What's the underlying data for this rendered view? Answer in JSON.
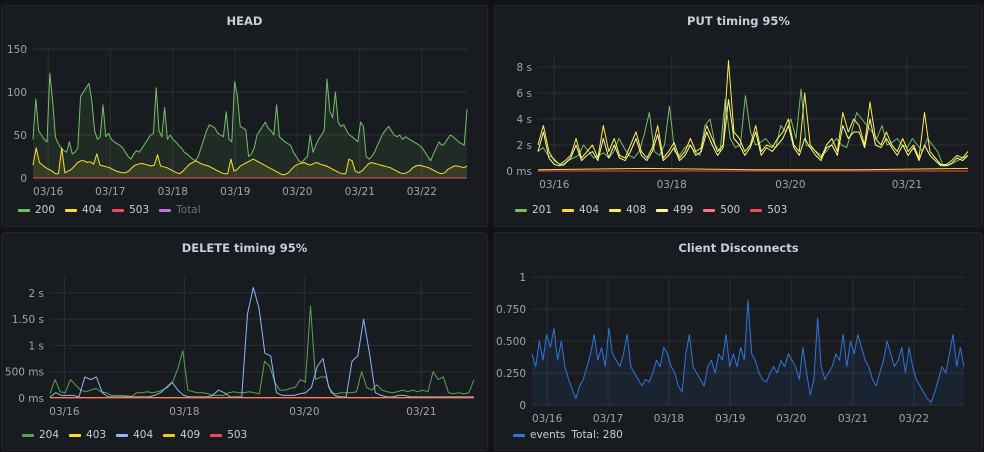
{
  "chart_data": [
    {
      "type": "area",
      "title": "HEAD",
      "xlabel": "",
      "ylabel": "",
      "ylim": [
        0,
        150
      ],
      "yticks": [
        "0",
        "50",
        "100",
        "150"
      ],
      "xticks": [
        "03/16",
        "03/17",
        "03/18",
        "03/19",
        "03/20",
        "03/21",
        "03/22"
      ],
      "grid": true,
      "legend_position": "bottom-left",
      "series": [
        {
          "name": "200",
          "color": "#73bf69",
          "values": [
            45,
            92,
            55,
            50,
            45,
            42,
            122,
            90,
            48,
            40,
            35,
            32,
            30,
            42,
            28,
            30,
            35,
            95,
            100,
            105,
            110,
            90,
            55,
            45,
            48,
            85,
            48,
            52,
            45,
            42,
            40,
            38,
            35,
            30,
            25,
            22,
            28,
            32,
            30,
            35,
            40,
            45,
            50,
            52,
            105,
            55,
            48,
            82,
            45,
            50,
            45,
            42,
            38,
            35,
            30,
            28,
            25,
            22,
            20,
            25,
            35,
            45,
            55,
            62,
            60,
            58,
            52,
            50,
            48,
            77,
            45,
            42,
            112,
            95,
            60,
            58,
            56,
            25,
            28,
            35,
            50,
            55,
            60,
            65,
            58,
            55,
            50,
            85,
            48,
            45,
            42,
            40,
            38,
            30,
            25,
            20,
            18,
            22,
            25,
            50,
            30,
            38,
            45,
            50,
            55,
            115,
            78,
            70,
            100,
            65,
            60,
            62,
            55,
            50,
            48,
            45,
            42,
            65,
            60,
            25,
            22,
            25,
            30,
            38,
            45,
            52,
            56,
            60,
            55,
            50,
            48,
            50,
            45,
            48,
            46,
            44,
            42,
            40,
            38,
            35,
            30,
            25,
            20,
            28,
            35,
            42,
            38,
            40,
            45,
            50,
            48,
            45,
            42,
            40,
            38,
            80
          ]
        },
        {
          "name": "404",
          "color": "#fade2a",
          "values": [
            15,
            35,
            18,
            15,
            12,
            10,
            8,
            5,
            5,
            35,
            6,
            8,
            10,
            14,
            18,
            20,
            20,
            18,
            19,
            16,
            28,
            15,
            14,
            13,
            12,
            10,
            8,
            7,
            6,
            6,
            8,
            12,
            15,
            16,
            17,
            16,
            15,
            14,
            15,
            27,
            14,
            13,
            12,
            10,
            8,
            6,
            5,
            8,
            12,
            16,
            18,
            20,
            18,
            16,
            15,
            14,
            12,
            10,
            8,
            6,
            5,
            5,
            22,
            8,
            10,
            14,
            16,
            18,
            20,
            22,
            20,
            18,
            16,
            14,
            12,
            10,
            8,
            6,
            4,
            4,
            6,
            10,
            14,
            16,
            17,
            18,
            16,
            15,
            17,
            18,
            16,
            15,
            14,
            12,
            10,
            8,
            6,
            5,
            5,
            22,
            20,
            8,
            6,
            8,
            12,
            16,
            18,
            17,
            16,
            15,
            14,
            13,
            12,
            10,
            8,
            6,
            5,
            6,
            8,
            12,
            14,
            15,
            14,
            13,
            12,
            10,
            8,
            6,
            5,
            6,
            10,
            12,
            14,
            14,
            13,
            12,
            14
          ]
        },
        {
          "name": "503",
          "color": "#f2495c",
          "values": [
            0,
            0
          ]
        },
        {
          "name": "Total",
          "color": "#b877d9",
          "hidden": true,
          "values": []
        }
      ]
    },
    {
      "type": "line",
      "title": "PUT timing 95%",
      "xlabel": "",
      "ylabel": "",
      "ylim": [
        0,
        9
      ],
      "yticks": [
        "0 ms",
        "2 s",
        "4 s",
        "6 s",
        "8 s"
      ],
      "xticks": [
        "03/16",
        "03/18",
        "03/20",
        "03/21"
      ],
      "grid": true,
      "legend_position": "bottom-left",
      "series": [
        {
          "name": "201",
          "color": "#73bf69",
          "values": [
            1.5,
            1.8,
            1.2,
            1.0,
            0.6,
            0.4,
            0.8,
            1.0,
            1.2,
            2.0,
            1.5,
            1.0,
            1.2,
            1.4,
            1.0,
            1.5,
            2.5,
            1.8,
            1.2,
            1.0,
            1.5,
            2.8,
            4.5,
            1.5,
            1.2,
            2.0,
            5.0,
            1.5,
            1.2,
            1.8,
            2.0,
            1.5,
            1.2,
            3.5,
            4.0,
            2.0,
            1.5,
            5.5,
            2.5,
            1.8,
            2.0,
            5.8,
            3.0,
            2.0,
            2.2,
            2.5,
            2.0,
            1.8,
            3.5,
            3.0,
            4.0,
            2.5,
            6.3,
            2.0,
            1.8,
            1.5,
            1.2,
            1.5,
            2.0,
            2.5,
            2.0,
            1.8,
            3.0,
            4.5,
            4.0,
            3.5,
            3.0,
            2.5,
            3.5,
            2.0,
            2.2,
            2.5,
            2.0,
            1.8,
            2.5,
            2.0,
            1.5,
            2.5,
            2.0,
            1.5,
            0.5,
            0.4,
            0.6,
            0.8,
            1.0,
            1.2
          ]
        },
        {
          "name": "404",
          "color": "#fade2a",
          "values": [
            0.1,
            0.2,
            0.1,
            0.1,
            0.2
          ]
        },
        {
          "name": "408",
          "color": "#ffee52",
          "values": [
            2.0,
            3.5,
            1.5,
            0.8,
            0.5,
            0.8,
            1.2,
            2.5,
            1.0,
            1.5,
            2.0,
            1.0,
            3.5,
            1.5,
            2.5,
            1.2,
            1.0,
            2.0,
            3.0,
            1.5,
            1.0,
            1.8,
            3.5,
            1.0,
            1.5,
            2.2,
            1.0,
            1.5,
            2.5,
            1.5,
            1.8,
            3.5,
            2.5,
            1.5,
            2.0,
            8.5,
            3.0,
            2.5,
            1.5,
            2.0,
            3.5,
            1.5,
            2.0,
            1.8,
            2.5,
            3.0,
            4.0,
            2.0,
            1.5,
            6.0,
            2.0,
            1.5,
            1.0,
            2.0,
            2.5,
            1.5,
            4.5,
            3.0,
            4.0,
            3.5,
            2.0,
            5.3,
            2.5,
            2.0,
            3.0,
            2.0,
            1.5,
            2.5,
            1.5,
            2.0,
            1.0,
            4.5,
            1.5,
            1.0,
            0.5,
            0.5,
            0.8,
            1.2,
            1.0,
            1.5
          ]
        },
        {
          "name": "499",
          "color": "#fff899",
          "values": [
            1.5,
            3.0,
            1.0,
            0.5,
            0.4,
            0.6,
            1.0,
            2.0,
            0.8,
            1.2,
            1.5,
            0.8,
            2.5,
            1.0,
            2.0,
            1.0,
            0.8,
            1.5,
            2.5,
            1.2,
            0.8,
            1.5,
            2.8,
            0.8,
            1.2,
            1.8,
            0.8,
            1.2,
            2.0,
            1.2,
            1.5,
            3.0,
            2.0,
            1.2,
            1.8,
            5.5,
            2.5,
            2.0,
            1.2,
            1.8,
            3.0,
            1.2,
            1.8,
            1.5,
            2.0,
            2.5,
            3.5,
            1.8,
            1.2,
            2.5,
            1.8,
            1.2,
            0.8,
            1.8,
            2.0,
            1.2,
            3.5,
            2.5,
            3.0,
            3.0,
            1.8,
            4.0,
            2.0,
            1.8,
            2.5,
            1.8,
            1.2,
            2.0,
            1.2,
            1.8,
            0.8,
            2.0,
            1.2,
            0.8,
            0.4,
            0.4,
            0.6,
            1.0,
            0.8,
            1.2
          ]
        },
        {
          "name": "500",
          "color": "#ff7383",
          "values": [
            0,
            0
          ]
        },
        {
          "name": "503",
          "color": "#f2495c",
          "values": [
            0,
            0
          ]
        }
      ]
    },
    {
      "type": "line",
      "title": "DELETE timing 95%",
      "xlabel": "",
      "ylabel": "",
      "ylim": [
        0,
        2.3
      ],
      "yticks": [
        "0 ms",
        "500 ms",
        "1 s",
        "1.50 s",
        "2 s"
      ],
      "xticks": [
        "03/16",
        "03/18",
        "03/20",
        "03/21"
      ],
      "grid": true,
      "legend_position": "bottom-left",
      "series": [
        {
          "name": "204",
          "color": "#56a64b",
          "values": [
            0.08,
            0.35,
            0.12,
            0.1,
            0.35,
            0.25,
            0.15,
            0.12,
            0.15,
            0.18,
            0.12,
            0.1,
            0.05,
            0.05,
            0.05,
            0.04,
            0.03,
            0.1,
            0.1,
            0.12,
            0.1,
            0.12,
            0.15,
            0.2,
            0.3,
            0.55,
            0.9,
            0.15,
            0.12,
            0.1,
            0.1,
            0.08,
            0.05,
            0.05,
            0.05,
            0.1,
            0.12,
            0.1,
            0.1,
            0.12,
            0.1,
            0.08,
            0.7,
            0.6,
            0.3,
            0.15,
            0.15,
            0.18,
            0.2,
            0.35,
            0.3,
            1.75,
            0.35,
            0.4,
            0.4,
            0.1,
            0.08,
            0.1,
            0.1,
            0.1,
            0.12,
            0.5,
            0.2,
            0.15,
            0.25,
            0.15,
            0.12,
            0.1,
            0.12,
            0.15,
            0.12,
            0.15,
            0.12,
            0.15,
            0.12,
            0.5,
            0.35,
            0.4,
            0.1,
            0.08,
            0.1,
            0.08,
            0.1,
            0.35
          ]
        },
        {
          "name": "403",
          "color": "#fade2a",
          "values": [
            0.01,
            0.01
          ]
        },
        {
          "name": "404",
          "color": "#8ab8ff",
          "values": [
            0.02,
            0.1,
            0.05,
            0.05,
            0.05,
            0.02,
            0.4,
            0.35,
            0.4,
            0.1,
            0.02,
            0.02,
            0.02,
            0.02,
            0.02,
            0.02,
            0.02,
            0.02,
            0.05,
            0.1,
            0.2,
            0.3,
            0.15,
            0.05,
            0.02,
            0.02,
            0.02,
            0.02,
            0.05,
            0.15,
            0.1,
            0.02,
            0.02,
            0.02,
            1.6,
            2.1,
            1.7,
            0.85,
            0.8,
            0.1,
            0.05,
            0.05,
            0.05,
            0.08,
            0.1,
            0.2,
            0.6,
            0.75,
            0.2,
            0.05,
            0.02,
            0.02,
            0.7,
            0.8,
            1.5,
            0.85,
            0.1,
            0.05,
            0.02,
            0.02,
            0.05,
            0.05,
            0.02,
            0.02,
            0.02,
            0.02,
            0.02,
            0.02,
            0.02,
            0.02,
            0.02,
            0.02,
            0.02,
            0.02
          ]
        },
        {
          "name": "409",
          "color": "#f2cc0c",
          "values": [
            0.01,
            0.01
          ]
        },
        {
          "name": "503",
          "color": "#f2495c",
          "values": [
            0.0,
            0.0
          ]
        }
      ]
    },
    {
      "type": "area",
      "title": "Client Disconnects",
      "xlabel": "",
      "ylabel": "",
      "ylim": [
        0,
        1
      ],
      "yticks": [
        "0",
        "0.250",
        "0.500",
        "0.750",
        "1"
      ],
      "xticks": [
        "03/16",
        "03/17",
        "03/18",
        "03/19",
        "03/20",
        "03/21",
        "03/22"
      ],
      "grid": true,
      "legend_position": "bottom-left",
      "series": [
        {
          "name": "events",
          "color": "#3274d9",
          "values": [
            0.4,
            0.3,
            0.5,
            0.35,
            0.55,
            0.45,
            0.6,
            0.35,
            0.5,
            0.3,
            0.2,
            0.12,
            0.05,
            0.15,
            0.2,
            0.3,
            0.4,
            0.55,
            0.35,
            0.45,
            0.3,
            0.6,
            0.4,
            0.35,
            0.3,
            0.4,
            0.55,
            0.3,
            0.25,
            0.2,
            0.15,
            0.2,
            0.18,
            0.25,
            0.35,
            0.3,
            0.45,
            0.4,
            0.3,
            0.25,
            0.15,
            0.1,
            0.4,
            0.55,
            0.3,
            0.25,
            0.2,
            0.15,
            0.3,
            0.35,
            0.25,
            0.4,
            0.35,
            0.55,
            0.3,
            0.4,
            0.3,
            0.45,
            0.35,
            0.82,
            0.4,
            0.35,
            0.25,
            0.2,
            0.18,
            0.25,
            0.3,
            0.25,
            0.35,
            0.3,
            0.4,
            0.35,
            0.3,
            0.2,
            0.45,
            0.25,
            0.08,
            0.2,
            0.68,
            0.3,
            0.2,
            0.25,
            0.3,
            0.4,
            0.35,
            0.55,
            0.3,
            0.5,
            0.4,
            0.55,
            0.45,
            0.35,
            0.3,
            0.2,
            0.15,
            0.25,
            0.35,
            0.5,
            0.4,
            0.3,
            0.35,
            0.45,
            0.25,
            0.45,
            0.3,
            0.2,
            0.15,
            0.1,
            0.05,
            0.02,
            0.1,
            0.2,
            0.3,
            0.25,
            0.4,
            0.55,
            0.3,
            0.45,
            0.3
          ]
        }
      ],
      "legend_extra": "Total: 280"
    }
  ]
}
